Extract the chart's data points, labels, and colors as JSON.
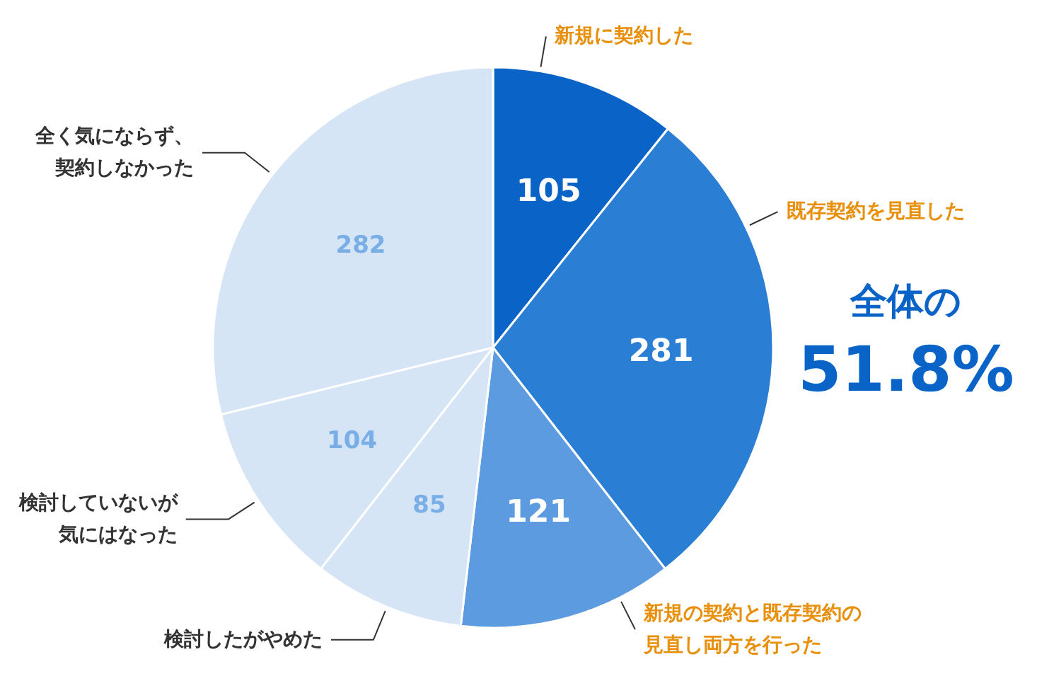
{
  "chart_data": {
    "type": "pie",
    "categories": [
      "新規に契約した",
      "既存契約を見直した",
      "新規の契約と既存契約の見直し両方を行った",
      "検討したがやめた",
      "検討していないが気にはなった",
      "全く気にならず、契約しなかった"
    ],
    "values": [
      105,
      281,
      121,
      85,
      104,
      282
    ],
    "colors": [
      "#0a64c8",
      "#2a7fd5",
      "#5c9be0",
      "#d5e5f6",
      "#d5e5f6",
      "#d5e5f6"
    ],
    "data_labels": true,
    "annotations": [
      "全体の",
      "51.8%"
    ]
  }
}
